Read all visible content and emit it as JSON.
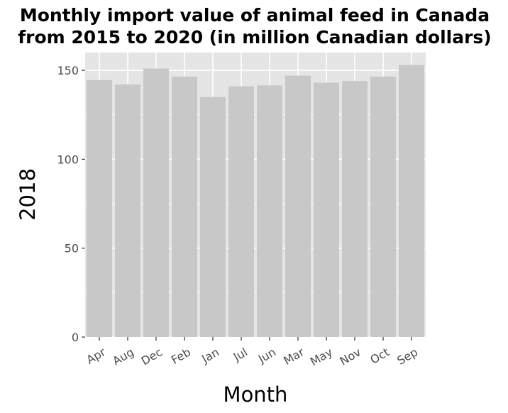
{
  "chart_data": {
    "type": "bar",
    "title": "Monthly import value of animal feed in Canada from 2015 to 2020 (in million Canadian dollars)",
    "title_lines": [
      "Monthly import value of animal feed in Canada",
      "from 2015 to 2020 (in million Canadian dollars)"
    ],
    "xlabel": "Month",
    "ylabel": "2018",
    "categories": [
      "Apr",
      "Aug",
      "Dec",
      "Feb",
      "Jan",
      "Jul",
      "Jun",
      "Mar",
      "May",
      "Nov",
      "Oct",
      "Sep"
    ],
    "values": [
      144.5,
      142,
      151,
      146.5,
      135,
      141,
      141.5,
      147,
      143,
      144,
      146.5,
      153
    ],
    "ylim": [
      0,
      160
    ],
    "yticks": [
      0,
      50,
      100,
      150
    ],
    "grid": true,
    "colors": {
      "bar": "#c8c8c8",
      "panel": "#e5e5e5",
      "grid": "#ffffff"
    }
  }
}
